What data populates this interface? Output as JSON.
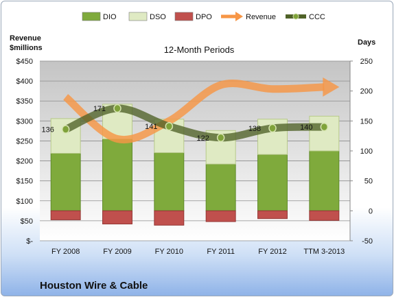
{
  "company_name": "Houston Wire & Cable",
  "chart_data": {
    "type": "bar",
    "title": "12-Month Periods",
    "left_axis_label_line1": "Revenue",
    "left_axis_label_line2": "$millions",
    "right_axis_label": "Days",
    "categories": [
      "FY 2008",
      "FY 2009",
      "FY 2010",
      "FY 2011",
      "FY 2012",
      "TTM 3-2013"
    ],
    "left_ylim": [
      0,
      450
    ],
    "left_ticks": [
      0,
      50,
      100,
      150,
      200,
      250,
      300,
      350,
      400,
      450
    ],
    "left_tick_labels": [
      "$-",
      "$50",
      "$100",
      "$150",
      "$200",
      "$250",
      "$300",
      "$350",
      "$400",
      "$450"
    ],
    "right_ylim": [
      -50,
      250
    ],
    "right_ticks": [
      -50,
      0,
      50,
      100,
      150,
      200,
      250
    ],
    "grid": true,
    "legend_position": "top",
    "series": [
      {
        "name": "DIO",
        "kind": "bar",
        "axis": "days",
        "color": "#7faa3c",
        "values": [
          96,
          120,
          97,
          78,
          94,
          100
        ]
      },
      {
        "name": "DSO",
        "kind": "bar",
        "axis": "days",
        "color": "#dfeac3",
        "values": [
          58,
          58,
          56,
          56,
          59,
          58
        ]
      },
      {
        "name": "DPO",
        "kind": "bar",
        "axis": "days",
        "color": "#c0504d",
        "values": [
          -15,
          -22,
          -24,
          -18,
          -13,
          -16
        ]
      },
      {
        "name": "Revenue",
        "kind": "arrow",
        "axis": "revenue",
        "color": "#f79646",
        "values": [
          360,
          255,
          300,
          390,
          380,
          385
        ]
      },
      {
        "name": "CCC",
        "kind": "line",
        "axis": "days",
        "color": "#4f6228",
        "values": [
          136,
          171,
          141,
          122,
          138,
          140
        ]
      }
    ],
    "data_labels": [
      "136",
      "171",
      "141",
      "122",
      "138",
      "140"
    ]
  }
}
